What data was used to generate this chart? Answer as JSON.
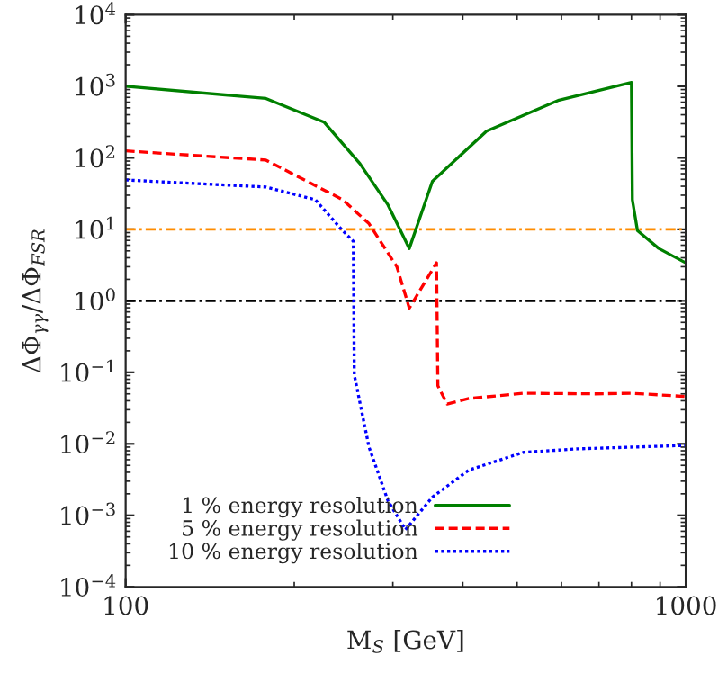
{
  "chart_data": {
    "type": "line",
    "xlabel": "M$_{S}$ [GeV]",
    "ylabel": "ΔΦ$_{γγ}$/ΔΦ$_{FSR}$",
    "log": "xy",
    "xlim": [
      100,
      1000
    ],
    "xticks": [
      100,
      1000
    ],
    "ylim": [
      0.0001,
      10000
    ],
    "yticks": [
      {
        "value": 0.0001,
        "label": "10$^{−4}$"
      },
      {
        "value": 0.001,
        "label": "10$^{−3}$"
      },
      {
        "value": 0.01,
        "label": "10$^{−2}$"
      },
      {
        "value": 0.1,
        "label": "10$^{−1}$"
      },
      {
        "value": 1,
        "label": "10$^{0}$"
      },
      {
        "value": 10,
        "label": "10$^{1}$"
      },
      {
        "value": 100,
        "label": "10$^{2}$"
      },
      {
        "value": 1000,
        "label": "10$^{3}$"
      },
      {
        "value": 10000,
        "label": "10$^{4}$"
      }
    ],
    "grid": false,
    "legend": "bottom",
    "series": [
      {
        "name": "1 % energy resolution",
        "color": "#008000",
        "line_style": "solid",
        "x": [
          100,
          178,
          226,
          262,
          294,
          321,
          353,
          441,
          594,
          800,
          803,
          820,
          895,
          1000
        ],
        "values": [
          1000,
          676,
          316,
          83,
          22,
          5.4,
          47,
          236,
          640,
          1130,
          26,
          9.6,
          5.4,
          3.4
        ]
      },
      {
        "name": "5 % energy resolution",
        "color": "#ff0000",
        "line_style": "dashed",
        "x": [
          100,
          178,
          244,
          272,
          305,
          321,
          359,
          361,
          375,
          410,
          513,
          690,
          800,
          1000
        ],
        "values": [
          125,
          93,
          26,
          12,
          3,
          0.79,
          3.4,
          0.065,
          0.036,
          0.043,
          0.051,
          0.05,
          0.051,
          0.046
        ]
      },
      {
        "name": "10 % energy resolution",
        "color": "#0000ff",
        "line_style": "dotted",
        "x": [
          100,
          178,
          218,
          244,
          255,
          256,
          272,
          294,
          316,
          353,
          410,
          513,
          640,
          1000
        ],
        "values": [
          49,
          39,
          26,
          9.6,
          6.8,
          0.092,
          0.009,
          0.0016,
          0.00063,
          0.0018,
          0.0043,
          0.0076,
          0.0085,
          0.0095
        ]
      }
    ],
    "ref_lines": [
      {
        "axis": "y",
        "value": 10,
        "color": "#ff8c00",
        "line_style": "dashdot"
      },
      {
        "axis": "y",
        "value": 1,
        "color": "#000000",
        "line_style": "dashdot"
      }
    ]
  }
}
